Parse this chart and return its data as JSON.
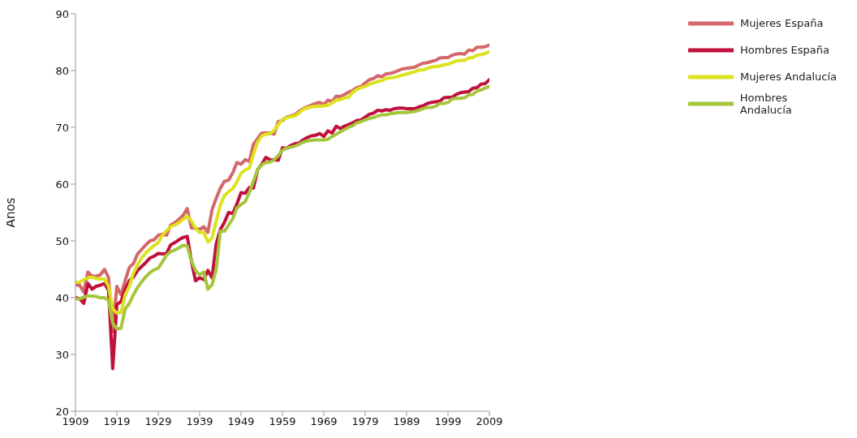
{
  "chart_data": {
    "type": "line",
    "ylabel": "Años",
    "x": [
      1909,
      1910,
      1911,
      1912,
      1913,
      1914,
      1915,
      1916,
      1917,
      1918,
      1919,
      1920,
      1921,
      1922,
      1923,
      1924,
      1925,
      1926,
      1927,
      1928,
      1929,
      1930,
      1931,
      1932,
      1933,
      1934,
      1935,
      1936,
      1937,
      1938,
      1939,
      1940,
      1941,
      1942,
      1943,
      1944,
      1945,
      1946,
      1947,
      1948,
      1949,
      1950,
      1951,
      1952,
      1953,
      1954,
      1955,
      1956,
      1957,
      1958,
      1959,
      1960,
      1961,
      1962,
      1963,
      1964,
      1965,
      1966,
      1967,
      1968,
      1969,
      1970,
      1971,
      1972,
      1973,
      1974,
      1975,
      1976,
      1977,
      1978,
      1979,
      1980,
      1981,
      1982,
      1983,
      1984,
      1985,
      1986,
      1987,
      1988,
      1989,
      1990,
      1991,
      1992,
      1993,
      1994,
      1995,
      1996,
      1997,
      1998,
      1999,
      2000,
      2001,
      2002,
      2003,
      2004,
      2005,
      2006,
      2007,
      2008,
      2009
    ],
    "series": [
      {
        "name": "Mujeres España",
        "color": "#d4676a",
        "values": [
          42.2,
          42.2,
          41,
          44.5,
          43.8,
          43.8,
          44,
          45,
          43.5,
          34,
          42,
          40.5,
          43,
          45.3,
          46,
          47.7,
          48.5,
          49.3,
          50,
          50.2,
          51,
          51.2,
          51,
          52.8,
          53.2,
          53.8,
          54.5,
          55.7,
          52.3,
          52.2,
          52,
          52.5,
          51.5,
          55.5,
          57.5,
          59.3,
          60.5,
          60.7,
          62,
          63.8,
          63.5,
          64.3,
          64,
          67,
          68,
          69,
          69,
          69,
          68.8,
          71,
          71.2,
          71.8,
          72,
          72.2,
          72.8,
          73.3,
          73.6,
          73.9,
          74.2,
          74.4,
          74,
          74.8,
          74.5,
          75.5,
          75.4,
          75.8,
          76.2,
          76.5,
          77,
          77.2,
          77.8,
          78.4,
          78.6,
          79.1,
          78.9,
          79.4,
          79.5,
          79.7,
          80,
          80.3,
          80.4,
          80.5,
          80.6,
          81,
          81.3,
          81.4,
          81.6,
          81.8,
          82.2,
          82.3,
          82.3,
          82.7,
          82.9,
          83,
          82.9,
          83.6,
          83.5,
          84.1,
          84.1,
          84.2,
          84.5
        ]
      },
      {
        "name": "Hombres España",
        "color": "#c0103c",
        "values": [
          40,
          39.8,
          39,
          42.5,
          41.5,
          42,
          42.2,
          42.5,
          41.3,
          27.5,
          38.8,
          39.3,
          41.5,
          43,
          43.6,
          44.8,
          45.5,
          46.2,
          47,
          47.3,
          47.8,
          47.7,
          47.8,
          49.3,
          49.7,
          50.2,
          50.6,
          50.8,
          46.5,
          43,
          43.5,
          43.2,
          44.8,
          43.5,
          49.5,
          52,
          53.3,
          55,
          54.8,
          56.5,
          58.5,
          58.4,
          59.4,
          59.3,
          62.5,
          63.5,
          64.7,
          64.3,
          64.3,
          64.2,
          66.4,
          66.3,
          66.8,
          67.1,
          67.2,
          67.8,
          68.2,
          68.5,
          68.6,
          68.9,
          68.4,
          69.4,
          69,
          70.2,
          69.8,
          70.2,
          70.5,
          70.8,
          71.2,
          71.3,
          71.8,
          72.3,
          72.5,
          73,
          72.9,
          73.1,
          73,
          73.3,
          73.4,
          73.4,
          73.3,
          73.3,
          73.3,
          73.6,
          73.8,
          74.2,
          74.4,
          74.5,
          74.6,
          75.2,
          75.3,
          75.3,
          75.8,
          76.1,
          76.2,
          76.3,
          76.9,
          77,
          77.6,
          77.7,
          78.4
        ]
      },
      {
        "name": "Mujeres Andalucía",
        "color": "#dde21f",
        "values": [
          42.7,
          42.7,
          43.2,
          43.5,
          43.6,
          43.4,
          43.3,
          43.3,
          42,
          38,
          37.3,
          37.4,
          40.5,
          42,
          44.3,
          45.8,
          47,
          47.9,
          48.6,
          49.2,
          49.7,
          51,
          51.8,
          52.5,
          52.8,
          53.2,
          53.8,
          54.4,
          53.5,
          52.2,
          51.5,
          51.5,
          49.8,
          50.5,
          53.5,
          56.3,
          58,
          58.7,
          59.2,
          60.4,
          61.9,
          62.5,
          62.8,
          65.3,
          67.4,
          68.5,
          68.8,
          68.9,
          69.5,
          70.5,
          71.4,
          71.7,
          71.9,
          72,
          72.5,
          73.2,
          73.4,
          73.6,
          73.7,
          73.7,
          73.8,
          73.9,
          74.3,
          74.8,
          74.9,
          75.2,
          75.3,
          76.2,
          76.7,
          77,
          77.2,
          77.6,
          77.8,
          78.1,
          78.2,
          78.6,
          78.7,
          78.8,
          79,
          79.2,
          79.4,
          79.6,
          79.8,
          80.1,
          80.1,
          80.4,
          80.6,
          80.7,
          80.8,
          81,
          81.1,
          81.4,
          81.7,
          81.8,
          81.8,
          82.2,
          82.3,
          82.7,
          82.8,
          83,
          83.3
        ]
      },
      {
        "name": "Hombres Andalucía",
        "color": "#a5c63b",
        "values": [
          39.8,
          39.8,
          40.1,
          40.3,
          40.3,
          40.2,
          40,
          40,
          39.5,
          35.5,
          34.5,
          34.6,
          38,
          39,
          40.5,
          41.8,
          42.8,
          43.7,
          44.4,
          44.9,
          45.2,
          46.3,
          47.5,
          48.1,
          48.4,
          48.8,
          49.2,
          49.1,
          46.5,
          44.8,
          44,
          44.5,
          41.5,
          42.3,
          45,
          51.7,
          51.7,
          52.8,
          53.9,
          55.8,
          56.4,
          56.9,
          58.5,
          60.5,
          62.5,
          63.4,
          63.8,
          63.9,
          64.3,
          65,
          66,
          66.3,
          66.5,
          66.7,
          67,
          67.4,
          67.6,
          67.7,
          67.8,
          67.8,
          67.8,
          67.9,
          68.4,
          68.8,
          69.2,
          69.6,
          70,
          70.3,
          70.8,
          71,
          71.3,
          71.6,
          71.7,
          72,
          72.2,
          72.2,
          72.4,
          72.5,
          72.6,
          72.6,
          72.6,
          72.7,
          72.8,
          73,
          73.3,
          73.5,
          73.5,
          73.7,
          74.2,
          74.2,
          74.4,
          75,
          75.1,
          75.1,
          75.2,
          75.7,
          75.8,
          76.4,
          76.6,
          76.9,
          77.2
        ]
      }
    ],
    "xlim": [
      1909,
      2009
    ],
    "xticks": [
      1909,
      1919,
      1929,
      1939,
      1949,
      1959,
      1969,
      1979,
      1989,
      1999,
      2009
    ],
    "ylim": [
      20,
      90
    ],
    "yticks": [
      20,
      30,
      40,
      50,
      60,
      70,
      80,
      90
    ],
    "grid": false,
    "legend": "top right",
    "marker": "none",
    "line_style": "solid"
  }
}
